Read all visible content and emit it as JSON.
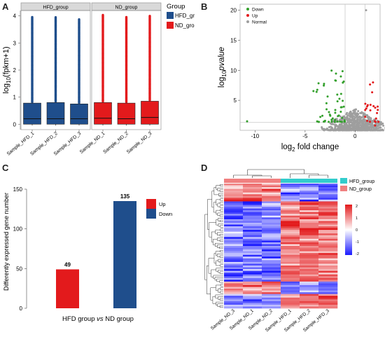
{
  "panels": {
    "a": "A",
    "b": "B",
    "c": "C",
    "d": "D"
  },
  "chart_data": [
    {
      "type": "box",
      "panel": "A",
      "ylabel": "log10(fpkm+1)",
      "ylabel_base": "log",
      "ylabel_sub": "10",
      "ylabel_rest": "(fpkm+1)",
      "ylim": [
        -0.2,
        4.2
      ],
      "yticks": [
        0,
        1,
        2,
        3,
        4
      ],
      "facets": [
        "HFD_group",
        "ND_group"
      ],
      "legend_title": "Group",
      "legend": [
        {
          "name": "HFD_group",
          "color": "#1f4e8c"
        },
        {
          "name": "ND_group",
          "color": "#e31a1c"
        }
      ],
      "samples": [
        {
          "name": "Sample_HFD_1",
          "group": "HFD_group",
          "q1": 0,
          "median": 0.2,
          "q3": 0.78,
          "max_outlier": 3.98
        },
        {
          "name": "Sample_HFD_2",
          "group": "HFD_group",
          "q1": 0,
          "median": 0.2,
          "q3": 0.8,
          "max_outlier": 3.95
        },
        {
          "name": "Sample_HFD_3",
          "group": "HFD_group",
          "q1": 0,
          "median": 0.2,
          "q3": 0.75,
          "max_outlier": 3.88
        },
        {
          "name": "Sample_ND_1",
          "group": "ND_group",
          "q1": 0,
          "median": 0.22,
          "q3": 0.8,
          "max_outlier": 4.05
        },
        {
          "name": "Sample_ND_2",
          "group": "ND_group",
          "q1": 0,
          "median": 0.2,
          "q3": 0.78,
          "max_outlier": 3.98
        },
        {
          "name": "Sample_ND_3",
          "group": "ND_group",
          "q1": 0,
          "median": 0.25,
          "q3": 0.85,
          "max_outlier": 4.0
        }
      ]
    },
    {
      "type": "scatter",
      "panel": "B",
      "xlabel": "log2 fold change",
      "xlabel_base": "log",
      "xlabel_sub": "2",
      "xlabel_rest": " fold change",
      "ylabel": "log10 pvalue",
      "ylabel_base": "log",
      "ylabel_sub": "10",
      "ylabel_rest": "pvalue",
      "xlim": [
        -11.5,
        2.5
      ],
      "ylim": [
        0,
        21
      ],
      "xticks": [
        -10,
        -5,
        0
      ],
      "yticks": [
        5,
        10,
        15,
        20
      ],
      "legend": [
        {
          "name": "Down",
          "color": "#33a02c"
        },
        {
          "name": "Up",
          "color": "#e31a1c"
        },
        {
          "name": "Normal",
          "color": "#9e9e9e"
        }
      ],
      "thresholds": {
        "x": [
          -1,
          1
        ],
        "y": 1.3
      }
    },
    {
      "type": "bar",
      "panel": "C",
      "categories": [
        "Up",
        "Down"
      ],
      "values": [
        49,
        135
      ],
      "colors": [
        "#e31a1c",
        "#1f4e8c"
      ],
      "ylabel": "Differently expressed gene number",
      "xlabel": "HFD group vs ND group",
      "xlabel_a": "HFD group ",
      "xlabel_vs": "vs",
      "xlabel_b": " ND group",
      "ylim": [
        0,
        150
      ],
      "yticks": [
        0,
        50,
        100,
        150
      ]
    },
    {
      "type": "heatmap",
      "panel": "D",
      "columns": [
        "Sample_ND_3",
        "Sample_ND_1",
        "Sample_ND_2",
        "Sample_HFD_1",
        "Sample_HFD_2",
        "Sample_HFD_3"
      ],
      "groups": [
        "ND_group",
        "ND_group",
        "ND_group",
        "HFD_group",
        "HFD_group",
        "HFD_group"
      ],
      "legend": [
        {
          "name": "HFD_group",
          "color": "#33cccc"
        },
        {
          "name": "ND_group",
          "color": "#f08080"
        }
      ],
      "scale_ticks": [
        2,
        1,
        0,
        -1,
        -2
      ],
      "scale_colors": [
        "#e31a1c",
        "#ffffff",
        "#1a1aff"
      ]
    }
  ]
}
